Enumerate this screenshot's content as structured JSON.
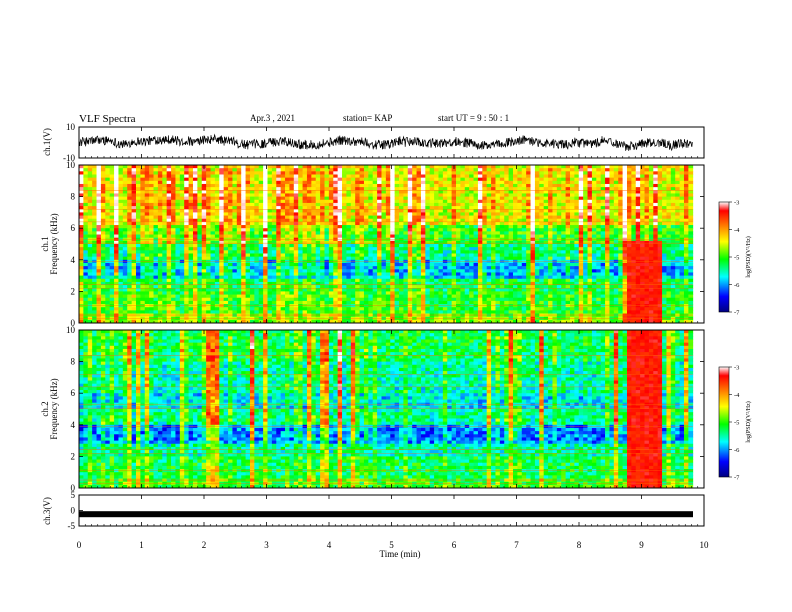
{
  "header": {
    "title": "VLF Spectra",
    "date": "Apr.3  , 2021",
    "station": "station= KAP",
    "start": "start  UT  =   9  : 50 : 1"
  },
  "chart_data": [
    {
      "type": "line",
      "panel": "ch1-waveform",
      "ylabel": "ch.1(V)",
      "ylim": [
        -10,
        10
      ],
      "yticks": [
        10,
        -10
      ],
      "xlim": [
        0,
        10
      ],
      "description_values": "noisy waveform oscillating roughly between -6 and 6 V"
    },
    {
      "type": "heatmap",
      "panel": "ch1-spectrogram",
      "ylabel": "ch.1 Frequency (kHz)",
      "ylim": [
        0,
        10
      ],
      "yticks": [
        0,
        2,
        4,
        6,
        8,
        10
      ],
      "xlim": [
        0,
        10
      ],
      "colorbar": {
        "label": "log(PSD)(V²/Hz)",
        "range": [
          -7,
          -3
        ],
        "ticks": [
          -3,
          -4,
          -5,
          -6,
          -7
        ],
        "colors": [
          "#000080",
          "#0000ff",
          "#00ffff",
          "#00ff00",
          "#ffff00",
          "#ff8000",
          "#ff0000",
          "#ffffff"
        ]
      },
      "events": [
        {
          "name": "broadband burst",
          "t_start": 8.7,
          "t_end": 9.3,
          "f_start": 0,
          "f_end": 5.2
        }
      ]
    },
    {
      "type": "heatmap",
      "panel": "ch2-spectrogram",
      "ylabel": "ch.2 Frequency (kHz)",
      "ylim": [
        0,
        10
      ],
      "yticks": [
        0,
        2,
        4,
        6,
        8,
        10
      ],
      "xlim": [
        0,
        10
      ],
      "colorbar": {
        "label": "log(PSD)(V²/Hz)",
        "range": [
          -7,
          -3
        ],
        "ticks": [
          -3,
          -4,
          -5,
          -6,
          -7
        ],
        "colors": [
          "#000080",
          "#0000ff",
          "#00ffff",
          "#00ff00",
          "#ffff00",
          "#ff8000",
          "#ff0000",
          "#ffffff"
        ]
      },
      "events": [
        {
          "name": "broadband burst",
          "t_start": 8.7,
          "t_end": 9.3,
          "f_start": 0,
          "f_end": 10
        }
      ]
    },
    {
      "type": "line",
      "panel": "ch3-waveform",
      "ylabel": "ch.3(V)",
      "ylim": [
        -5,
        5
      ],
      "yticks": [
        5,
        0,
        -5
      ],
      "xlim": [
        0,
        10
      ],
      "xlabel": "Time  (min)",
      "xticks": [
        0,
        1,
        2,
        3,
        4,
        5,
        6,
        7,
        8,
        9,
        10
      ],
      "level": -1.2
    }
  ]
}
